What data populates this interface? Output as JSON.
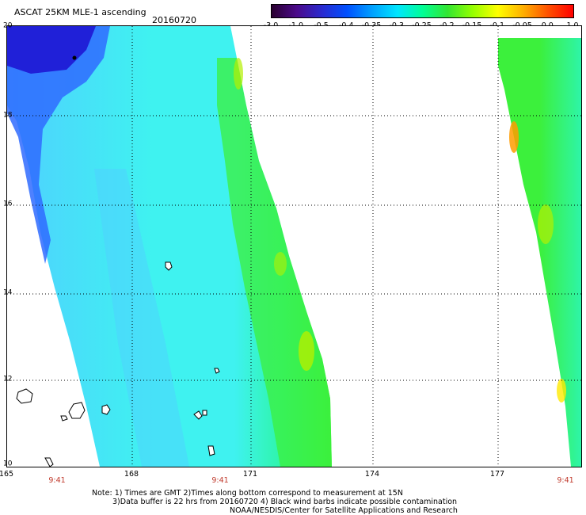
{
  "header": {
    "title": "ASCAT 25KM MLE-1 ascending",
    "date": "20160720"
  },
  "colorbar": {
    "ticks": [
      "-3.0",
      "-1.0",
      "-0.5",
      "-0.4",
      "-0.35",
      "-0.3",
      "-0.25",
      "-0.2",
      "-0.15",
      "-0.1",
      "-0.05",
      "0.0",
      "1.0"
    ],
    "colors": [
      "#2a0030",
      "#4b0a8a",
      "#2a2acf",
      "#0050ff",
      "#00a0ff",
      "#00e6ff",
      "#00ff96",
      "#32e632",
      "#96ff00",
      "#ffff00",
      "#ffb000",
      "#ff5000",
      "#ff0000"
    ]
  },
  "map": {
    "lat_labels": [
      "20",
      "18",
      "16",
      "14",
      "12",
      "10"
    ],
    "lon_labels": [
      "165",
      "168",
      "171",
      "174",
      "177"
    ],
    "time_labels": [
      "9:41",
      "9:41",
      "9:41"
    ],
    "colors": {
      "deep_blue": "#2020d8",
      "blue": "#2f6bff",
      "light_blue": "#4fd0ff",
      "cyan": "#3ff2f0",
      "aqua_green": "#2ef5a8",
      "green": "#3cf03c",
      "yellow_green": "#b4f000",
      "yellow": "#ffea00",
      "orange": "#ff9c00"
    }
  },
  "footer": {
    "note_line1": "Note: 1) Times are GMT 2)Times along bottom correspond to measurement at 15N",
    "note_line2": "3)Data buffer is 22 hrs from 20160720 4) Black wind barbs indicate possible contamination",
    "note_line3": "NOAA/NESDIS/Center for Satellite Applications and Research"
  }
}
